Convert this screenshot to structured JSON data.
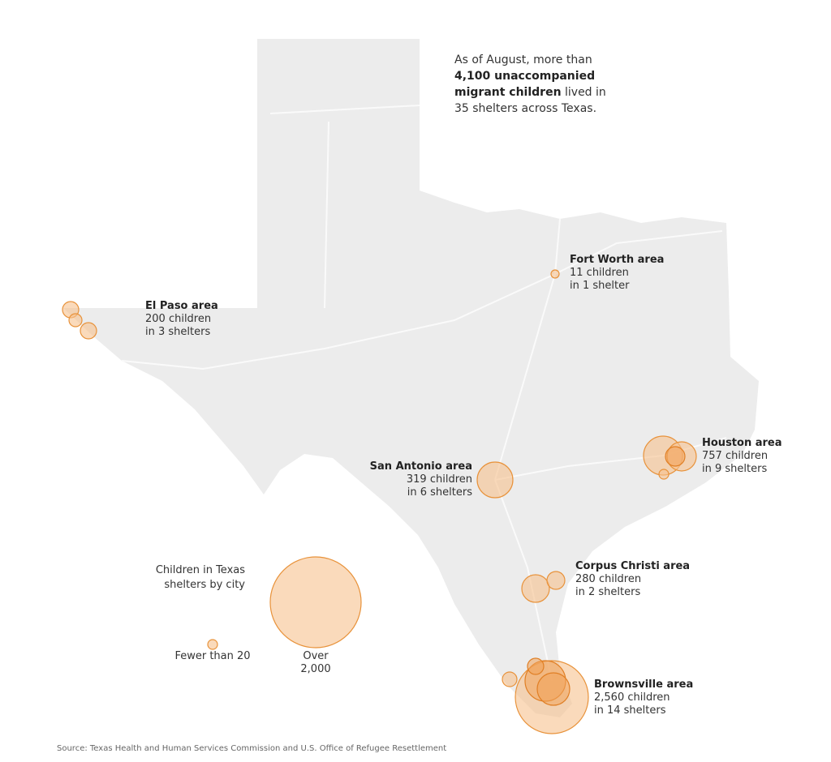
{
  "intro": {
    "before": "As of August, more than",
    "bold": "4,100 unaccompanied migrant children",
    "after": "lived in 35 shelters across Texas."
  },
  "areas": [
    {
      "name": "El Paso area",
      "children": "200 children",
      "shelters": "in 3 shelters"
    },
    {
      "name": "Fort Worth area",
      "children": "11 children",
      "shelters": "in 1 shelter"
    },
    {
      "name": "San Antonio area",
      "children": "319 children",
      "shelters": "in 6 shelters"
    },
    {
      "name": "Houston area",
      "children": "757 children",
      "shelters": "in 9 shelters"
    },
    {
      "name": "Corpus Christi area",
      "children": "280 children",
      "shelters": "in 2 shelters"
    },
    {
      "name": "Brownsville area",
      "children": "2,560 children",
      "shelters": "in 14 shelters"
    }
  ],
  "legend": {
    "title": "Children in Texas shelters by city",
    "small": "Fewer than 20",
    "large": "Over 2,000"
  },
  "source": "Source: Texas Health and Human Services Commission and U.S. Office of Refugee Resettlement"
}
